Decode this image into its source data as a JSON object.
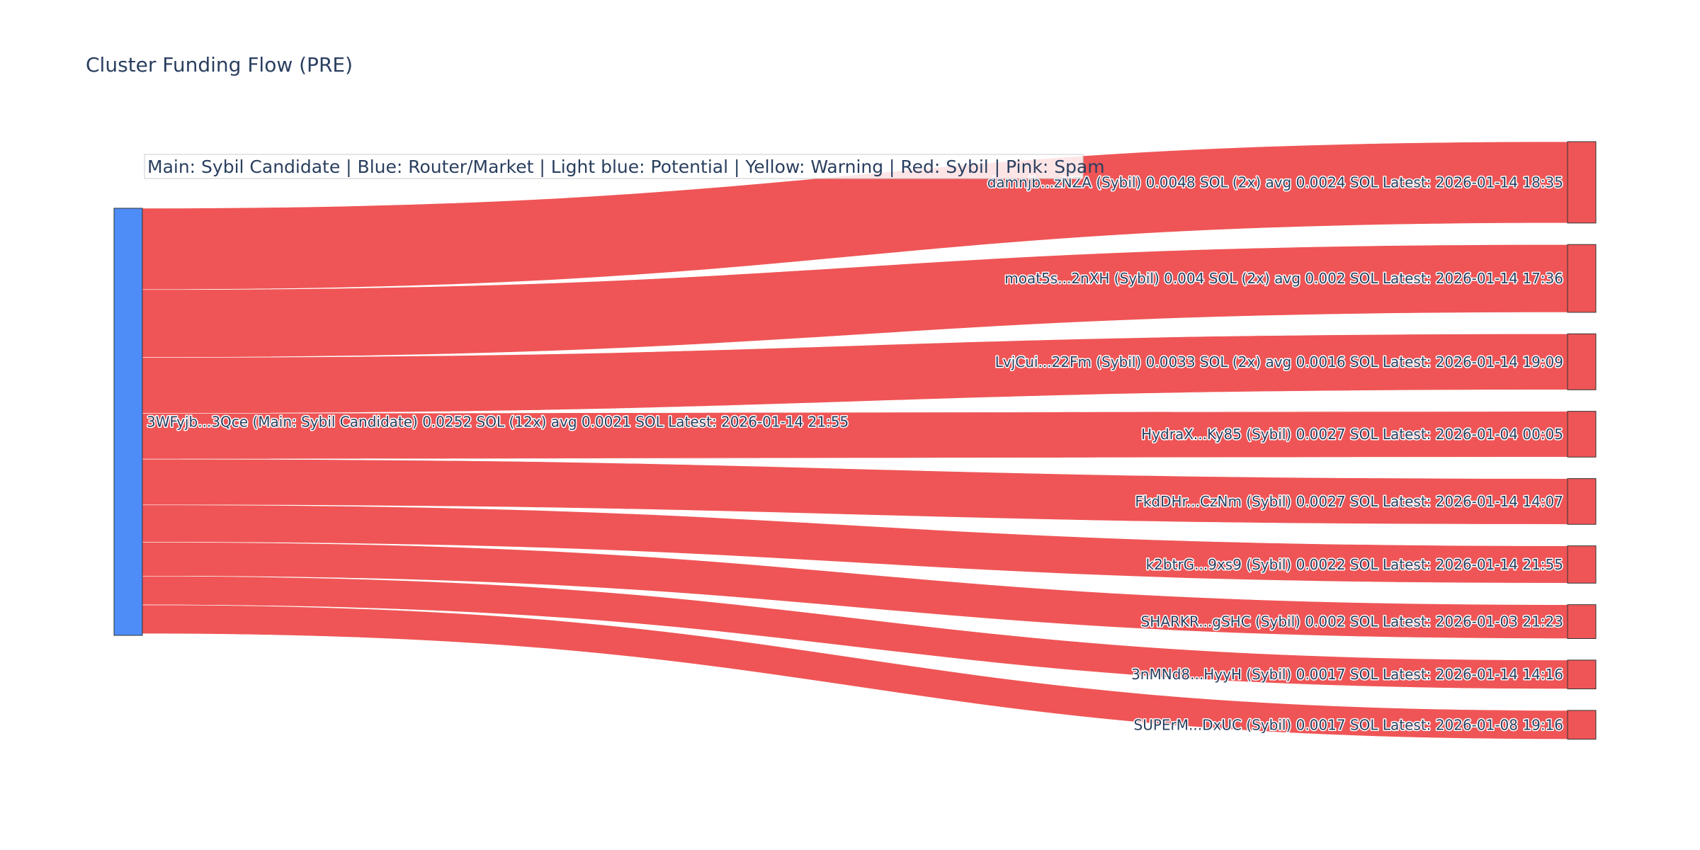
{
  "chart_data": {
    "type": "sankey",
    "title": "Cluster Funding Flow (PRE)",
    "annotation": "Main: Sybil Candidate  |  Blue: Router/Market | Light blue: Potential | Yellow: Warning | Red: Sybil | Pink: Spam",
    "colors": {
      "source_node": "#4e8cf8",
      "target_node": "#ef5556",
      "link": "#ef5556",
      "node_border": "#333333",
      "text": "#2a3f5f"
    },
    "source": {
      "label": "3WFyjb...3Qce (Main: Sybil Candidate) 0.0252 SOL (12x) avg 0.0021 SOL Latest: 2026-01-14 21:55",
      "value": 0.0252
    },
    "targets": [
      {
        "label": "damnjb...zNZA (Sybil) 0.0048 SOL (2x) avg 0.0024 SOL Latest: 2026-01-14 18:35",
        "value": 0.0048
      },
      {
        "label": "moat5s...2nXH (Sybil) 0.004 SOL (2x) avg 0.002 SOL Latest: 2026-01-14 17:36",
        "value": 0.004
      },
      {
        "label": "LvjCui...22Fm (Sybil) 0.0033 SOL (2x) avg 0.0016 SOL Latest: 2026-01-14 19:09",
        "value": 0.0033
      },
      {
        "label": "HydraX...Ky85 (Sybil) 0.0027 SOL Latest: 2026-01-04 00:05",
        "value": 0.0027
      },
      {
        "label": "FkdDHr...CzNm (Sybil) 0.0027 SOL Latest: 2026-01-14 14:07",
        "value": 0.0027
      },
      {
        "label": "k2btrG...9xs9 (Sybil) 0.0022 SOL Latest: 2026-01-14 21:55",
        "value": 0.0022
      },
      {
        "label": "SHARKR...gSHC (Sybil) 0.002 SOL Latest: 2026-01-03 21:23",
        "value": 0.002
      },
      {
        "label": "3nMNd8...HyyH (Sybil) 0.0017 SOL Latest: 2026-01-14 14:16",
        "value": 0.0017
      },
      {
        "label": "SUPErM...DxUC (Sybil) 0.0017 SOL Latest: 2026-01-08 19:16",
        "value": 0.0017
      }
    ]
  }
}
